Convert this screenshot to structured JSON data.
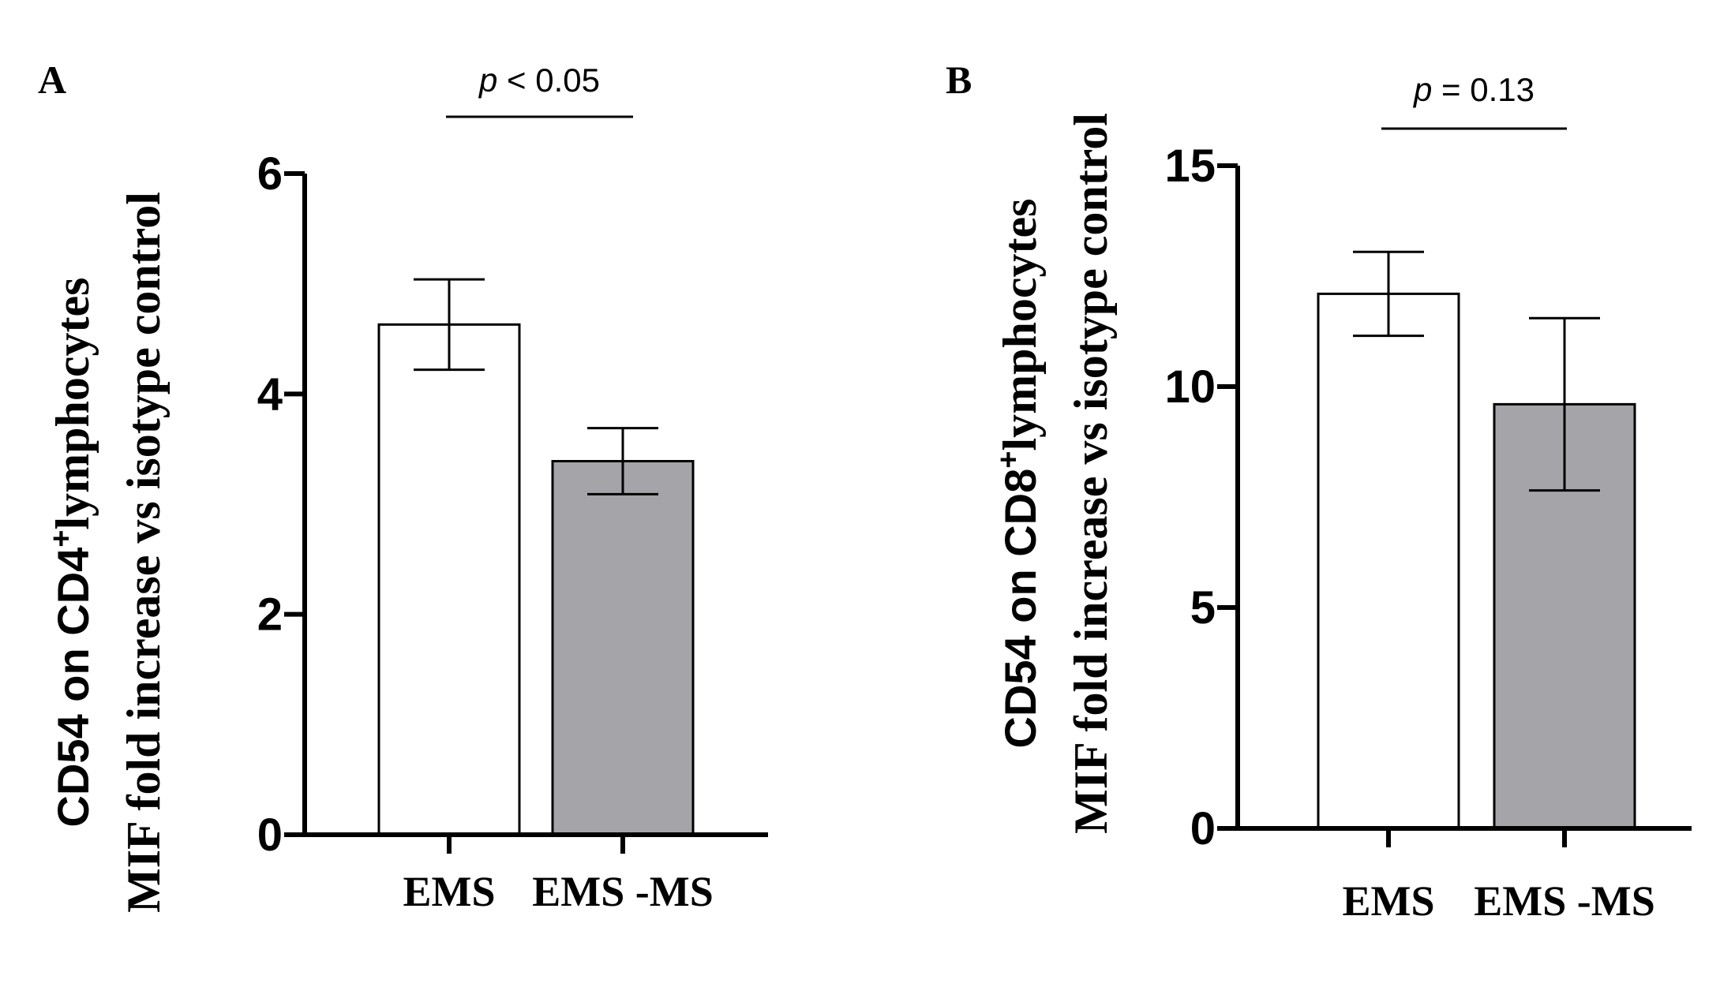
{
  "chart_data": [
    {
      "panel": "A",
      "type": "bar",
      "ylabel_line1_pre": "CD54 on CD4",
      "ylabel_line1_sup": "+",
      "ylabel_line1_post": "lymphocytes",
      "ylabel_line2": "MIF fold increase vs isotype control",
      "categories": [
        "EMS",
        "EMS -MS"
      ],
      "values": [
        4.63,
        3.39
      ],
      "errors": [
        0.41,
        0.3
      ],
      "colors": [
        "#ffffff",
        "#a5a4a9"
      ],
      "ylim": [
        0,
        6
      ],
      "yticks": [
        0,
        2,
        4,
        6
      ],
      "ytick_labels": [
        "0",
        "2",
        "4",
        "6"
      ],
      "annotation": {
        "italic": "p",
        "text": " < 0.05"
      }
    },
    {
      "panel": "B",
      "type": "bar",
      "ylabel_line1_pre": "CD54 on CD8",
      "ylabel_line1_sup": "+",
      "ylabel_line1_post": "lymphocytes",
      "ylabel_line2": "MIF fold increase vs isotype control",
      "categories": [
        "EMS",
        "EMS -MS"
      ],
      "values": [
        12.1,
        9.6
      ],
      "errors": [
        0.95,
        1.95
      ],
      "colors": [
        "#ffffff",
        "#a5a4a9"
      ],
      "ylim": [
        0,
        15
      ],
      "yticks": [
        0,
        5,
        10,
        15
      ],
      "ytick_labels": [
        "0",
        "5",
        "10",
        "15"
      ],
      "annotation": {
        "italic": "p",
        "text": " = 0.13"
      }
    }
  ]
}
